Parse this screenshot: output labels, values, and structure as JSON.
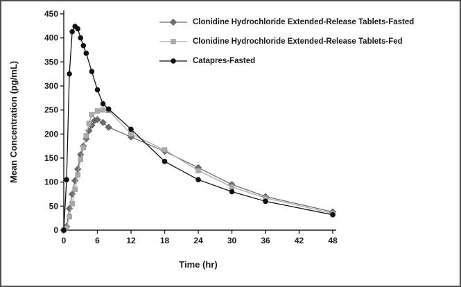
{
  "figure": {
    "background": "#ffffff",
    "border_color": "#4f4f4f"
  },
  "chart_data": {
    "type": "line",
    "title": "",
    "xlabel": "Time (hr)",
    "ylabel": "Mean Concentration (pg/mL)",
    "xlim": [
      0,
      48
    ],
    "ylim": [
      0,
      450
    ],
    "x_ticks": [
      0,
      6,
      12,
      18,
      24,
      30,
      36,
      42,
      48
    ],
    "y_ticks": [
      0,
      50,
      100,
      150,
      200,
      250,
      300,
      350,
      400,
      450
    ],
    "grid": false,
    "legend_position": "top-right",
    "axis_color": "#1a1a1a",
    "series": [
      {
        "name": "Clonidine Hydrochloride Extended-Release Tablets-Fasted",
        "marker": "diamond",
        "color": "#6e6e6e",
        "x": [
          0,
          0.5,
          1,
          1.5,
          2,
          2.5,
          3,
          3.5,
          4,
          4.5,
          5,
          5.5,
          6,
          7,
          8,
          12,
          18,
          24,
          30,
          36,
          48
        ],
        "y": [
          0,
          8,
          45,
          75,
          103,
          127,
          157,
          175,
          190,
          207,
          218,
          228,
          230,
          224,
          214,
          194,
          164,
          130,
          95,
          70,
          38
        ]
      },
      {
        "name": "Clonidine Hydrochloride Extended-Release Tablets-Fed",
        "marker": "square",
        "color": "#ababab",
        "x": [
          0,
          0.5,
          1,
          1.5,
          2,
          2.5,
          3,
          3.5,
          4,
          4.5,
          5,
          6,
          7,
          8,
          12,
          18,
          24,
          30,
          36,
          48
        ],
        "y": [
          0,
          5,
          28,
          55,
          85,
          115,
          147,
          172,
          196,
          222,
          240,
          248,
          250,
          249,
          200,
          167,
          124,
          90,
          67,
          35
        ]
      },
      {
        "name": "Catapres-Fasted",
        "marker": "circle",
        "color": "#111111",
        "x": [
          0,
          0.5,
          1,
          1.5,
          2,
          2.5,
          3,
          3.5,
          4,
          5,
          6,
          7,
          8,
          12,
          18,
          24,
          30,
          36,
          48
        ],
        "y": [
          0,
          105,
          325,
          413,
          424,
          419,
          400,
          384,
          368,
          330,
          292,
          263,
          252,
          210,
          143,
          105,
          80,
          60,
          32
        ]
      }
    ]
  }
}
